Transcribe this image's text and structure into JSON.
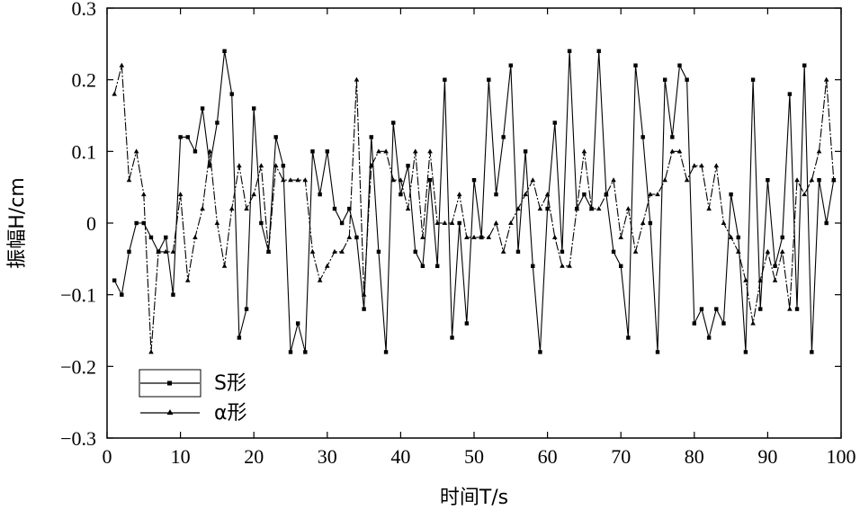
{
  "chart_data": {
    "type": "line",
    "xlabel": "时间T/s",
    "ylabel": "振幅H/cm",
    "xlim": [
      0,
      100
    ],
    "ylim": [
      -0.3,
      0.3
    ],
    "xticks": [
      "0",
      "10",
      "20",
      "30",
      "40",
      "50",
      "60",
      "70",
      "80",
      "90",
      "100"
    ],
    "yticks": [
      "0.3",
      "0.2",
      "0.1",
      "0",
      "−0.1",
      "−0.2",
      "−0.3"
    ],
    "grid": false,
    "legend_position": "bottom-left",
    "x": [
      1,
      2,
      3,
      4,
      5,
      6,
      7,
      8,
      9,
      10,
      11,
      12,
      13,
      14,
      15,
      16,
      17,
      18,
      19,
      20,
      21,
      22,
      23,
      24,
      25,
      26,
      27,
      28,
      29,
      30,
      31,
      32,
      33,
      34,
      35,
      36,
      37,
      38,
      39,
      40,
      41,
      42,
      43,
      44,
      45,
      46,
      47,
      48,
      49,
      50,
      51,
      52,
      53,
      54,
      55,
      56,
      57,
      58,
      59,
      60,
      61,
      62,
      63,
      64,
      65,
      66,
      67,
      68,
      69,
      70,
      71,
      72,
      73,
      74,
      75,
      76,
      77,
      78,
      79,
      80,
      81,
      82,
      83,
      84,
      85,
      86,
      87,
      88,
      89,
      90,
      91,
      92,
      93,
      94,
      95,
      96,
      97,
      98,
      99
    ],
    "series": [
      {
        "name": "S形",
        "marker": "square",
        "values": [
          -0.08,
          -0.1,
          -0.04,
          0,
          0,
          -0.02,
          -0.04,
          -0.02,
          -0.1,
          0.12,
          0.12,
          0.1,
          0.16,
          0.08,
          0.14,
          0.24,
          0.18,
          -0.16,
          -0.12,
          0.16,
          0,
          -0.04,
          0.12,
          0.08,
          -0.18,
          -0.14,
          -0.18,
          0.1,
          0.04,
          0.1,
          0.02,
          0,
          0.02,
          -0.02,
          -0.12,
          0.12,
          -0.04,
          -0.18,
          0.14,
          0.04,
          0.08,
          -0.04,
          -0.06,
          0.06,
          -0.06,
          0.2,
          -0.16,
          0,
          -0.14,
          0.06,
          -0.02,
          0.2,
          0.04,
          0.12,
          0.22,
          -0.04,
          0.1,
          -0.06,
          -0.18,
          0.02,
          0.14,
          -0.04,
          0.24,
          0.02,
          0.04,
          0.02,
          0.24,
          0.04,
          -0.04,
          -0.06,
          -0.16,
          0.22,
          0.12,
          0,
          -0.18,
          0.2,
          0.12,
          0.22,
          0.2,
          -0.14,
          -0.12,
          -0.16,
          -0.12,
          -0.14,
          0.04,
          -0.02,
          -0.18,
          0.2,
          -0.12,
          0.06,
          -0.06,
          -0.02,
          0.18,
          -0.12,
          0.22,
          -0.18,
          0.06,
          0,
          0.06
        ]
      },
      {
        "name": "α形",
        "marker": "triangle",
        "values": [
          0.18,
          0.22,
          0.06,
          0.1,
          0.04,
          -0.18,
          -0.04,
          -0.04,
          -0.04,
          0.04,
          -0.08,
          -0.02,
          0.02,
          0.1,
          0,
          -0.06,
          0.02,
          0.08,
          0.02,
          0.04,
          0.08,
          -0.04,
          0.08,
          0.06,
          0.06,
          0.06,
          0.06,
          -0.04,
          -0.08,
          -0.06,
          -0.04,
          -0.04,
          -0.02,
          0.2,
          -0.1,
          0.08,
          0.1,
          0.1,
          0.06,
          0.06,
          0.02,
          0.1,
          -0.02,
          0.1,
          0,
          0,
          0,
          0.04,
          -0.02,
          -0.02,
          -0.02,
          -0.02,
          0,
          -0.04,
          0,
          0.02,
          0.04,
          0.06,
          0.02,
          0.04,
          -0.02,
          -0.06,
          -0.06,
          0.02,
          0.1,
          0.02,
          0.02,
          0.04,
          0.06,
          -0.02,
          0.02,
          -0.04,
          0,
          0.04,
          0.04,
          0.06,
          0.1,
          0.1,
          0.06,
          0.08,
          0.08,
          0.02,
          0.08,
          0,
          -0.02,
          -0.04,
          -0.08,
          -0.14,
          -0.08,
          -0.04,
          -0.08,
          -0.04,
          -0.12,
          0.06,
          0.04,
          0.06,
          0.1,
          0.2,
          0.06
        ]
      }
    ]
  }
}
